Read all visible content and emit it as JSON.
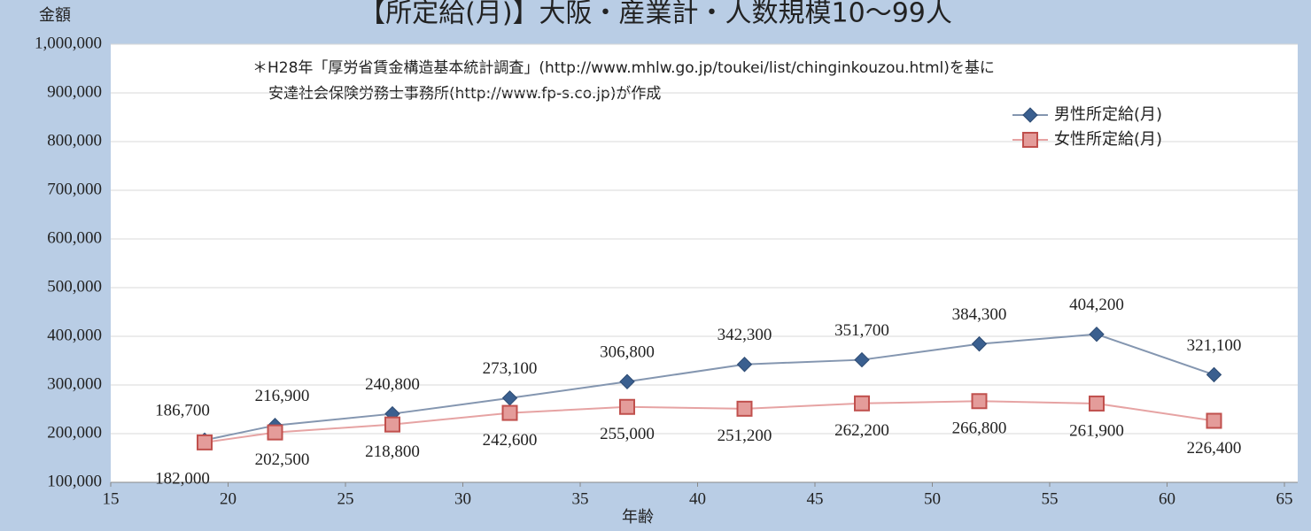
{
  "chart_data": {
    "type": "line",
    "title": "【所定給(月)】大阪・産業計・人数規模10～99人",
    "ylabel": "金額",
    "xlabel": "年齢",
    "annotation": [
      "＊H28年「厚労省賃金構造基本統計調査」(http://www.mhlw.go.jp/toukei/list/chinginkouzou.html)を基に",
      "安達社会保険労務士事務所(http://www.fp-s.co.jp)が作成"
    ],
    "x": [
      19,
      22,
      27,
      32,
      37,
      42,
      47,
      52,
      57,
      62
    ],
    "series": [
      {
        "name": "男性所定給(月)",
        "color": "#3a5f8f",
        "line_color": "#8496b0",
        "marker": "diamond",
        "values": [
          186700,
          216900,
          240800,
          273100,
          306800,
          342300,
          351700,
          384300,
          404200,
          321100
        ],
        "value_labels": [
          "186,700",
          "216,900",
          "240,800",
          "273,100",
          "306,800",
          "342,300",
          "351,700",
          "384,300",
          "404,200",
          "321,100"
        ]
      },
      {
        "name": "女性所定給(月)",
        "color": "#e49c9a",
        "line_color": "#e6a3a3",
        "marker": "square",
        "values": [
          182000,
          202500,
          218800,
          242600,
          255000,
          251200,
          262200,
          266800,
          261900,
          226400
        ],
        "value_labels": [
          "182,000",
          "202,500",
          "218,800",
          "242,600",
          "255,000",
          "251,200",
          "262,200",
          "266,800",
          "261,900",
          "226,400"
        ]
      }
    ],
    "xlim": [
      15,
      65
    ],
    "xticks": [
      15,
      20,
      25,
      30,
      35,
      40,
      45,
      50,
      55,
      60,
      65
    ],
    "ylim": [
      100000,
      1000000
    ],
    "yticks": [
      {
        "value": 100000,
        "label": "100,000"
      },
      {
        "value": 200000,
        "label": "200,000"
      },
      {
        "value": 300000,
        "label": "300,000"
      },
      {
        "value": 400000,
        "label": "400,000"
      },
      {
        "value": 500000,
        "label": "500,000"
      },
      {
        "value": 600000,
        "label": "600,000"
      },
      {
        "value": 700000,
        "label": "700,000"
      },
      {
        "value": 800000,
        "label": "800,000"
      },
      {
        "value": 900000,
        "label": "900,000"
      },
      {
        "value": 1000000,
        "label": "1,000,000"
      }
    ],
    "grid": true,
    "legend": "upper right"
  }
}
